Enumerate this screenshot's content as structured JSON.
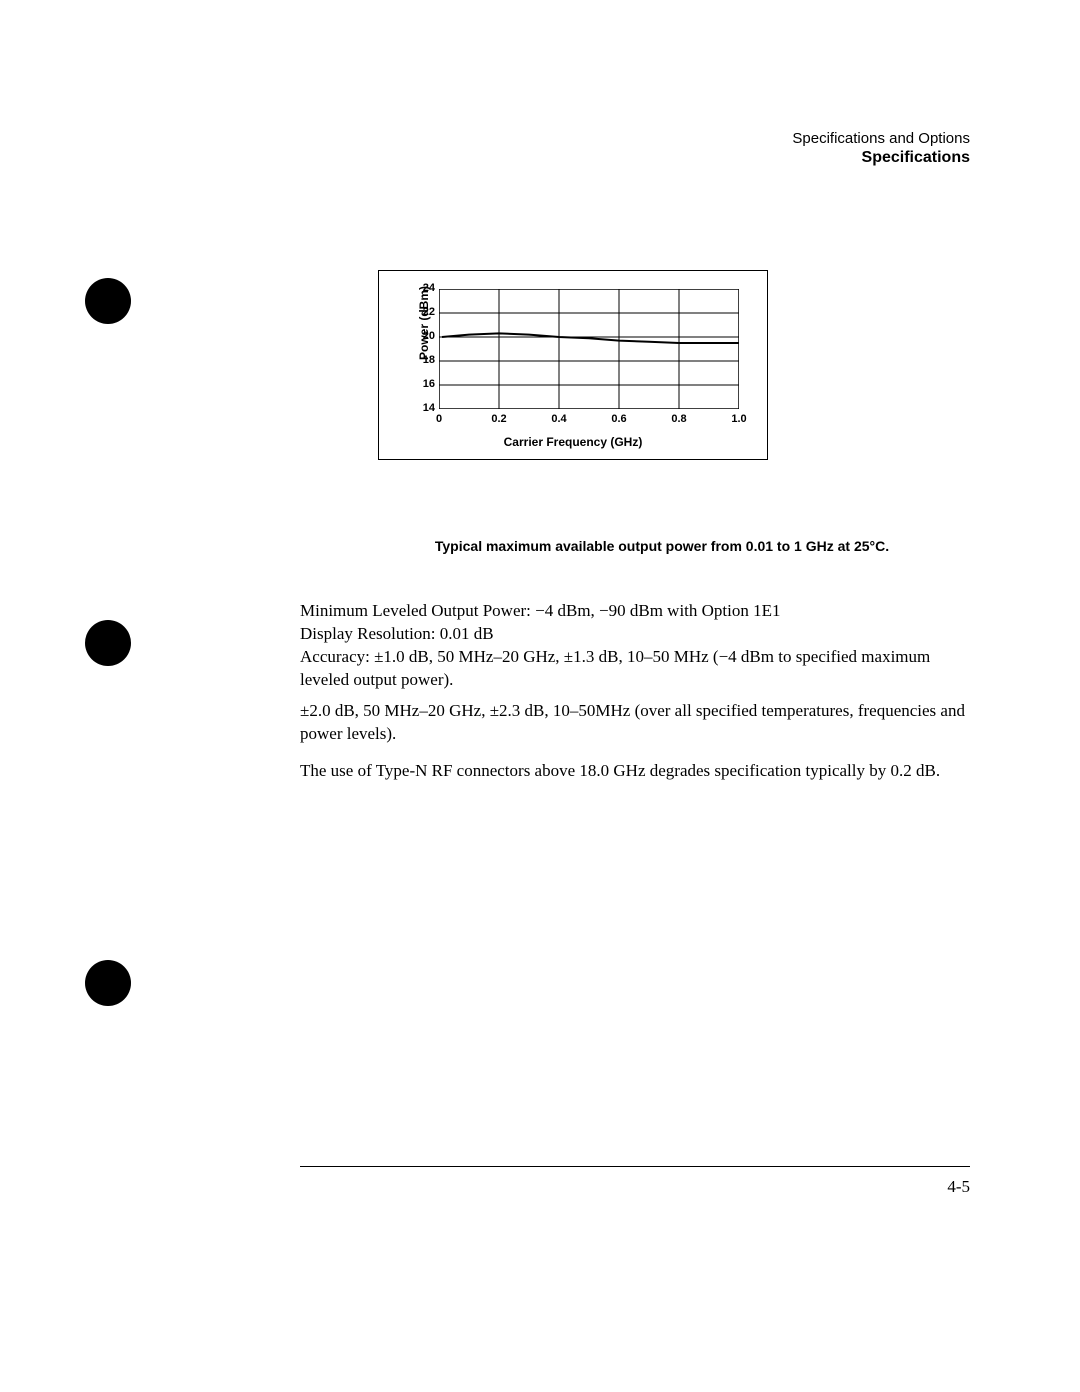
{
  "header": {
    "line1": "Specifications and Options",
    "line2": "Specifications"
  },
  "chart": {
    "type": "line",
    "ylabel": "Power (dBm)",
    "xlabel": "Carrier Frequency (GHz)",
    "xlim": [
      0,
      1.0
    ],
    "ylim": [
      14,
      24
    ],
    "xticks": [
      0,
      0.2,
      0.4,
      0.6,
      0.8,
      1.0
    ],
    "xtick_labels": [
      "0",
      "0.2",
      "0.4",
      "0.6",
      "0.8",
      "1.0"
    ],
    "yticks": [
      14,
      16,
      18,
      20,
      22,
      24
    ],
    "ytick_labels": [
      "14",
      "16",
      "18",
      "20",
      "22",
      "24"
    ],
    "series": [
      {
        "x": [
          0.01,
          0.1,
          0.2,
          0.3,
          0.4,
          0.5,
          0.6,
          0.7,
          0.8,
          0.9,
          1.0
        ],
        "y": [
          20.0,
          20.2,
          20.3,
          20.2,
          20.0,
          19.9,
          19.7,
          19.6,
          19.5,
          19.5,
          19.5
        ],
        "color": "#000000",
        "width": 2
      }
    ],
    "grid_color": "#000000",
    "background": "#ffffff",
    "border_color": "#000000",
    "label_fontsize": 12,
    "tick_fontsize": 11
  },
  "caption": "Typical maximum available output power from 0.01 to 1 GHz at 25°C.",
  "paragraphs": {
    "p1": "Minimum Leveled Output Power: −4 dBm, −90 dBm with Option 1E1 Display Resolution: 0.01 dB\nAccuracy: ±1.0 dB, 50 MHz–20 GHz, ±1.3 dB, 10–50 MHz (−4 dBm to specified maximum leveled output power).",
    "p2": "±2.0 dB, 50 MHz–20 GHz, ±2.3 dB, 10–50MHz (over all specified temperatures, frequencies and power levels).",
    "p3": "The use of Type-N RF connectors above 18.0 GHz degrades specification typically by 0.2 dB."
  },
  "page_number": "4-5"
}
